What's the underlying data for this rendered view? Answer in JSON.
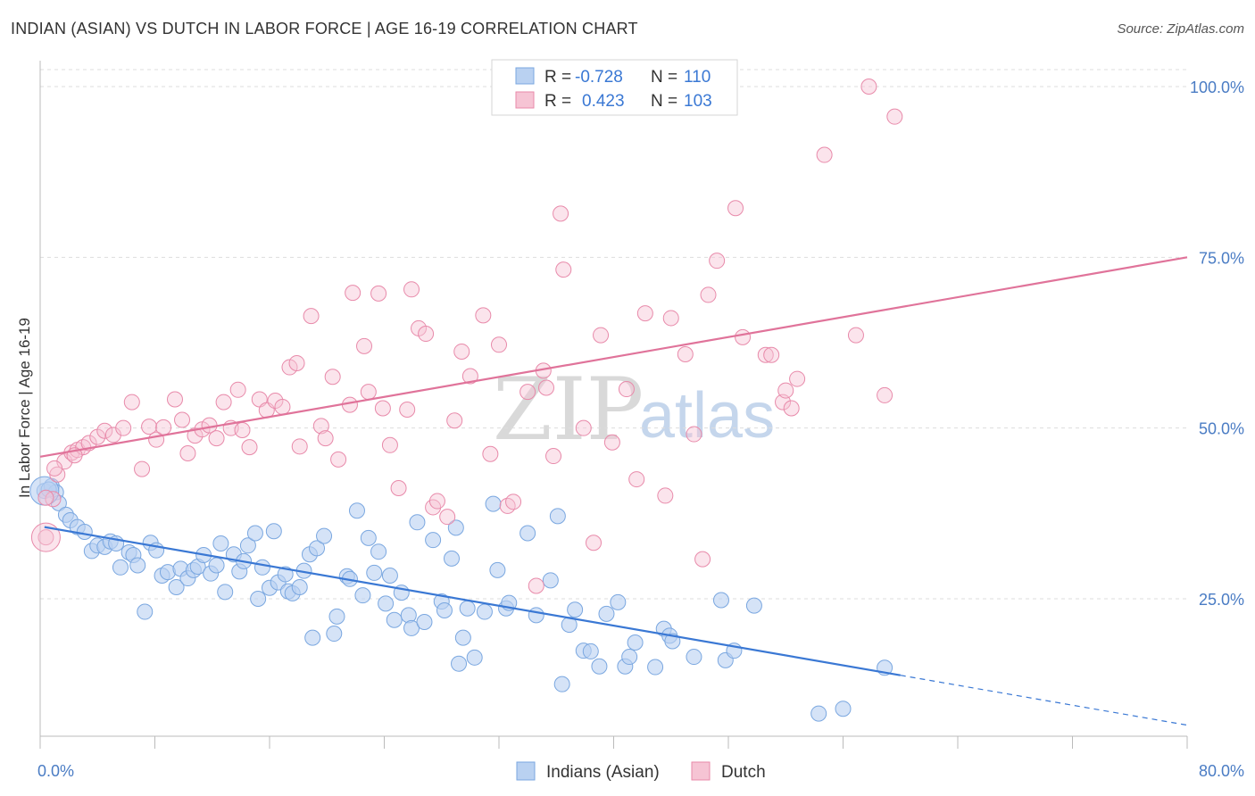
{
  "header": {
    "title": "INDIAN (ASIAN) VS DUTCH IN LABOR FORCE | AGE 16-19 CORRELATION CHART",
    "source": "Source: ZipAtlas.com"
  },
  "legend": {
    "r_label": "R =",
    "n_label": "N =",
    "series": [
      {
        "name": "Indians (Asian)",
        "r": "-0.728",
        "n": "110",
        "color": "#7aa7e0",
        "fill": "#b9d1f1"
      },
      {
        "name": "Dutch",
        "r": "0.423",
        "n": "103",
        "color": "#e88aaa",
        "fill": "#f6c4d4"
      }
    ]
  },
  "watermark": {
    "zip": "ZIP",
    "atlas": "atlas"
  },
  "chart_data": {
    "type": "scatter",
    "title": "INDIAN (ASIAN) VS DUTCH IN LABOR FORCE | AGE 16-19 CORRELATION CHART",
    "xlabel": "",
    "ylabel": "In Labor Force | Age 16-19",
    "xlim": [
      0,
      80
    ],
    "ylim": [
      0,
      102
    ],
    "x_tick_labels": [
      "0.0%",
      "80.0%"
    ],
    "y_tick_labels": [
      "25.0%",
      "50.0%",
      "75.0%",
      "100.0%"
    ],
    "y_ticks": [
      25,
      50,
      75,
      100
    ],
    "grid": true,
    "legend_position": "top-center",
    "series": [
      {
        "name": "Indians (Asian)",
        "color": "#3a78d4",
        "trend": {
          "x0": 0.3,
          "y0": 35.5,
          "x1": 60,
          "y1": 13.8,
          "dashed_to_x": 80,
          "dashed_to_y": 6.5
        },
        "points": [
          [
            0.3,
            40.8
          ],
          [
            0.8,
            41.5
          ],
          [
            1.1,
            40.6
          ],
          [
            1.3,
            39.0
          ],
          [
            1.8,
            37.3
          ],
          [
            2.1,
            36.5
          ],
          [
            2.6,
            35.5
          ],
          [
            3.1,
            34.8
          ],
          [
            3.6,
            32.0
          ],
          [
            4.0,
            32.8
          ],
          [
            4.5,
            32.6
          ],
          [
            4.9,
            33.4
          ],
          [
            5.3,
            33.1
          ],
          [
            5.6,
            29.6
          ],
          [
            6.2,
            31.8
          ],
          [
            6.5,
            31.4
          ],
          [
            6.8,
            29.9
          ],
          [
            7.3,
            23.1
          ],
          [
            7.7,
            33.2
          ],
          [
            8.1,
            32.1
          ],
          [
            8.5,
            28.4
          ],
          [
            8.9,
            28.9
          ],
          [
            9.5,
            26.7
          ],
          [
            9.8,
            29.4
          ],
          [
            10.3,
            28.0
          ],
          [
            10.7,
            29.2
          ],
          [
            11.0,
            29.7
          ],
          [
            11.4,
            31.4
          ],
          [
            11.9,
            28.7
          ],
          [
            12.3,
            29.9
          ],
          [
            12.6,
            33.1
          ],
          [
            12.9,
            26.0
          ],
          [
            13.5,
            31.5
          ],
          [
            13.9,
            29.0
          ],
          [
            14.2,
            30.5
          ],
          [
            14.5,
            32.8
          ],
          [
            15.0,
            34.6
          ],
          [
            15.2,
            25.0
          ],
          [
            15.5,
            29.6
          ],
          [
            16.0,
            26.6
          ],
          [
            16.3,
            34.9
          ],
          [
            16.6,
            27.4
          ],
          [
            17.1,
            28.6
          ],
          [
            17.3,
            26.1
          ],
          [
            17.6,
            25.8
          ],
          [
            18.1,
            26.7
          ],
          [
            18.4,
            29.1
          ],
          [
            18.8,
            31.5
          ],
          [
            19.3,
            32.4
          ],
          [
            19.0,
            19.3
          ],
          [
            19.8,
            34.2
          ],
          [
            20.5,
            19.9
          ],
          [
            20.7,
            22.4
          ],
          [
            21.4,
            28.3
          ],
          [
            21.6,
            27.9
          ],
          [
            22.1,
            37.9
          ],
          [
            22.5,
            25.5
          ],
          [
            22.9,
            33.9
          ],
          [
            23.3,
            28.8
          ],
          [
            23.6,
            31.9
          ],
          [
            24.1,
            24.3
          ],
          [
            24.4,
            28.4
          ],
          [
            24.7,
            21.9
          ],
          [
            25.2,
            25.9
          ],
          [
            25.7,
            22.6
          ],
          [
            25.9,
            20.7
          ],
          [
            26.3,
            36.2
          ],
          [
            26.8,
            21.6
          ],
          [
            27.4,
            33.6
          ],
          [
            28.0,
            24.6
          ],
          [
            28.2,
            23.3
          ],
          [
            28.7,
            30.9
          ],
          [
            29.0,
            35.4
          ],
          [
            29.5,
            19.3
          ],
          [
            29.8,
            23.6
          ],
          [
            30.3,
            16.4
          ],
          [
            29.2,
            15.5
          ],
          [
            31.0,
            23.1
          ],
          [
            31.6,
            38.9
          ],
          [
            31.9,
            29.2
          ],
          [
            32.5,
            23.6
          ],
          [
            32.7,
            24.4
          ],
          [
            34.0,
            34.6
          ],
          [
            34.6,
            22.6
          ],
          [
            35.6,
            27.7
          ],
          [
            36.1,
            37.1
          ],
          [
            36.4,
            12.5
          ],
          [
            36.9,
            21.2
          ],
          [
            37.3,
            23.4
          ],
          [
            37.9,
            17.4
          ],
          [
            38.4,
            17.3
          ],
          [
            39.0,
            15.1
          ],
          [
            39.5,
            22.8
          ],
          [
            40.3,
            24.5
          ],
          [
            40.8,
            15.1
          ],
          [
            41.1,
            16.5
          ],
          [
            41.5,
            18.6
          ],
          [
            42.9,
            15.0
          ],
          [
            43.5,
            20.6
          ],
          [
            43.9,
            19.6
          ],
          [
            44.1,
            18.8
          ],
          [
            45.6,
            16.5
          ],
          [
            47.5,
            24.8
          ],
          [
            47.8,
            16.0
          ],
          [
            48.4,
            17.4
          ],
          [
            49.8,
            24.0
          ],
          [
            54.3,
            8.2
          ],
          [
            56.0,
            8.9
          ],
          [
            58.9,
            14.9
          ],
          [
            0.6,
            41.0
          ]
        ],
        "large_points": [
          [
            0.3,
            40.8
          ]
        ]
      },
      {
        "name": "Dutch",
        "color": "#e0739a",
        "trend": {
          "x0": 0,
          "y0": 45.8,
          "x1": 80,
          "y1": 75.0
        },
        "points": [
          [
            0.4,
            34.0
          ],
          [
            0.9,
            39.6
          ],
          [
            1.2,
            43.2
          ],
          [
            1.7,
            45.1
          ],
          [
            2.2,
            46.4
          ],
          [
            2.6,
            46.8
          ],
          [
            3.0,
            47.2
          ],
          [
            3.4,
            47.8
          ],
          [
            4.0,
            48.7
          ],
          [
            4.5,
            49.6
          ],
          [
            5.1,
            49.0
          ],
          [
            5.8,
            50.0
          ],
          [
            6.4,
            53.8
          ],
          [
            7.1,
            44.0
          ],
          [
            7.6,
            50.2
          ],
          [
            8.1,
            48.3
          ],
          [
            8.6,
            50.1
          ],
          [
            9.4,
            54.2
          ],
          [
            9.9,
            51.2
          ],
          [
            10.3,
            46.3
          ],
          [
            10.8,
            48.9
          ],
          [
            11.3,
            49.8
          ],
          [
            11.8,
            50.4
          ],
          [
            12.3,
            48.5
          ],
          [
            12.8,
            53.8
          ],
          [
            13.3,
            50.0
          ],
          [
            13.8,
            55.6
          ],
          [
            14.1,
            49.7
          ],
          [
            14.6,
            47.2
          ],
          [
            15.3,
            54.2
          ],
          [
            15.8,
            52.6
          ],
          [
            16.4,
            54.0
          ],
          [
            16.9,
            53.1
          ],
          [
            17.4,
            58.9
          ],
          [
            17.9,
            59.5
          ],
          [
            18.1,
            47.3
          ],
          [
            18.9,
            66.4
          ],
          [
            19.6,
            50.3
          ],
          [
            19.9,
            48.5
          ],
          [
            20.4,
            57.5
          ],
          [
            20.8,
            45.4
          ],
          [
            21.6,
            53.4
          ],
          [
            21.8,
            69.8
          ],
          [
            22.6,
            62.0
          ],
          [
            22.9,
            55.3
          ],
          [
            23.6,
            69.7
          ],
          [
            23.9,
            52.9
          ],
          [
            24.4,
            47.5
          ],
          [
            25.0,
            41.2
          ],
          [
            25.6,
            52.7
          ],
          [
            25.9,
            70.3
          ],
          [
            26.4,
            64.6
          ],
          [
            26.9,
            63.8
          ],
          [
            27.4,
            38.4
          ],
          [
            27.7,
            39.3
          ],
          [
            28.4,
            37.0
          ],
          [
            28.9,
            51.1
          ],
          [
            29.4,
            61.2
          ],
          [
            30.0,
            57.6
          ],
          [
            30.9,
            66.5
          ],
          [
            31.4,
            46.2
          ],
          [
            32.0,
            62.2
          ],
          [
            32.6,
            38.6
          ],
          [
            33.0,
            39.2
          ],
          [
            34.0,
            55.3
          ],
          [
            34.6,
            26.9
          ],
          [
            35.1,
            58.4
          ],
          [
            35.3,
            55.9
          ],
          [
            35.8,
            45.9
          ],
          [
            36.3,
            81.4
          ],
          [
            36.5,
            73.2
          ],
          [
            37.9,
            50.0
          ],
          [
            38.6,
            33.2
          ],
          [
            39.1,
            63.6
          ],
          [
            39.9,
            47.9
          ],
          [
            40.9,
            55.7
          ],
          [
            41.6,
            42.5
          ],
          [
            42.2,
            66.8
          ],
          [
            43.6,
            40.1
          ],
          [
            44.0,
            66.1
          ],
          [
            45.0,
            60.8
          ],
          [
            45.6,
            49.1
          ],
          [
            46.2,
            30.8
          ],
          [
            46.6,
            69.5
          ],
          [
            47.2,
            74.5
          ],
          [
            48.5,
            82.2
          ],
          [
            49.0,
            63.3
          ],
          [
            50.6,
            60.7
          ],
          [
            51.0,
            60.7
          ],
          [
            51.8,
            53.8
          ],
          [
            52.0,
            55.5
          ],
          [
            52.4,
            52.9
          ],
          [
            52.8,
            57.2
          ],
          [
            54.7,
            90.0
          ],
          [
            56.9,
            63.6
          ],
          [
            57.8,
            100.0
          ],
          [
            58.9,
            54.8
          ],
          [
            59.6,
            95.6
          ],
          [
            33.9,
            100.1
          ],
          [
            38.2,
            100.0
          ],
          [
            0.4,
            39.8
          ],
          [
            1.0,
            44.1
          ],
          [
            2.4,
            46.0
          ]
        ],
        "large_points": [
          [
            0.4,
            34.0
          ]
        ]
      }
    ]
  }
}
